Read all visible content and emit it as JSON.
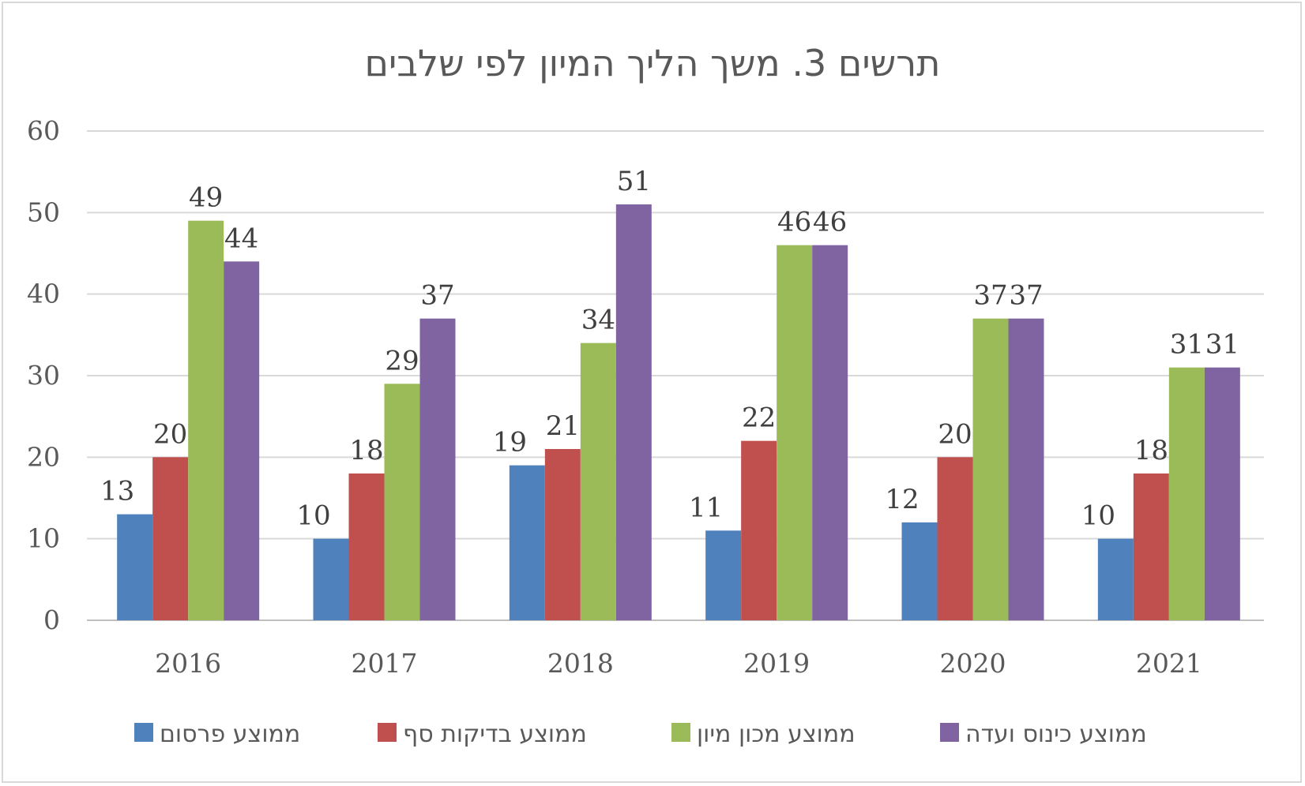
{
  "chart_data": {
    "type": "bar",
    "title": "תרשים 3. משך הליך המיון לפי שלבים",
    "categories": [
      "2016",
      "2017",
      "2018",
      "2019",
      "2020",
      "2021"
    ],
    "ylim": [
      0,
      60
    ],
    "yticks": [
      0,
      10,
      20,
      30,
      40,
      50,
      60
    ],
    "grid": true,
    "legend_position": "bottom",
    "series": [
      {
        "name": "ממוצע פרסום",
        "color": "#4f81bd",
        "values": [
          13,
          10,
          19,
          11,
          12,
          10
        ],
        "labels": [
          "13",
          "10",
          "19",
          "11",
          "12",
          "10"
        ]
      },
      {
        "name": "ממוצע בדיקות סף",
        "color": "#c0504d",
        "values": [
          20,
          18,
          21,
          22,
          20,
          18
        ],
        "labels": [
          "20",
          "18",
          "21",
          "22",
          "20",
          "18"
        ]
      },
      {
        "name": "ממוצע מכון מיון",
        "color": "#9bbb59",
        "values": [
          49,
          29,
          34,
          46,
          37,
          31
        ],
        "labels": [
          "49",
          "29",
          "34",
          "46",
          "37",
          "31"
        ]
      },
      {
        "name": "ממוצע כינוס ועדה",
        "color": "#8064a2",
        "values": [
          44,
          37,
          51,
          46,
          37,
          31
        ],
        "labels": [
          "44",
          "37",
          "51",
          "46",
          "37",
          "31"
        ]
      }
    ]
  }
}
